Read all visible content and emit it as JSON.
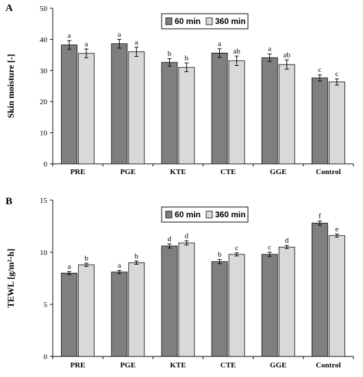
{
  "chart_data": [
    {
      "type": "bar",
      "panel_label": "A",
      "ylabel": "Skin moisture [-]",
      "ylim": [
        0,
        50
      ],
      "yticks": [
        0,
        10,
        20,
        30,
        40,
        50
      ],
      "categories": [
        "PRE",
        "PGE",
        "KTE",
        "CTE",
        "GGE",
        "Control"
      ],
      "legend_position": "top-center",
      "grid": false,
      "series": [
        {
          "name": "60 min",
          "color": "#7f7f7f",
          "values": [
            38.2,
            38.6,
            32.6,
            35.6,
            34.1,
            27.6
          ],
          "errors": [
            1.4,
            1.4,
            1.2,
            1.4,
            1.2,
            1.0
          ],
          "letters": [
            "a",
            "a",
            "b",
            "a",
            "a",
            "c"
          ]
        },
        {
          "name": "360 min",
          "color": "#d9d9d9",
          "values": [
            35.5,
            36.0,
            31.0,
            33.1,
            31.9,
            26.3
          ],
          "errors": [
            1.4,
            1.5,
            1.4,
            1.5,
            1.5,
            1.0
          ],
          "letters": [
            "a",
            "a",
            "b",
            "ab",
            "ab",
            "c"
          ]
        }
      ]
    },
    {
      "type": "bar",
      "panel_label": "B",
      "ylabel": "TEWL [g/m²·h]",
      "ylim": [
        0,
        15
      ],
      "yticks": [
        0,
        5,
        10,
        15
      ],
      "categories": [
        "PRE",
        "PGE",
        "KTE",
        "CTE",
        "GGE",
        "Control"
      ],
      "legend_position": "top-center",
      "grid": false,
      "series": [
        {
          "name": "60 min",
          "color": "#7f7f7f",
          "values": [
            8.0,
            8.1,
            10.6,
            9.1,
            9.8,
            12.8
          ],
          "errors": [
            0.15,
            0.15,
            0.2,
            0.2,
            0.2,
            0.2
          ],
          "letters": [
            "a",
            "a",
            "d",
            "b",
            "c",
            "f"
          ]
        },
        {
          "name": "360 min",
          "color": "#d9d9d9",
          "values": [
            8.8,
            9.0,
            10.9,
            9.8,
            10.5,
            11.6
          ],
          "errors": [
            0.15,
            0.15,
            0.2,
            0.15,
            0.15,
            0.15
          ],
          "letters": [
            "b",
            "b",
            "d",
            "c",
            "d",
            "e"
          ]
        }
      ]
    }
  ]
}
